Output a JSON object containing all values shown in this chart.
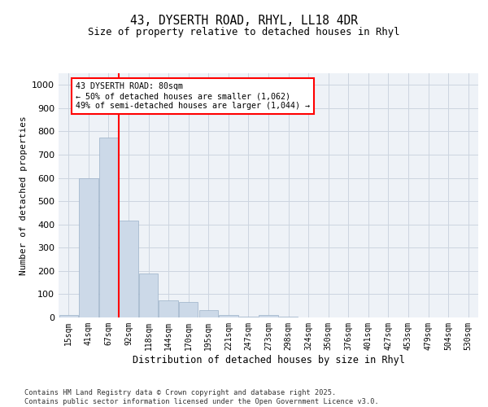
{
  "title1": "43, DYSERTH ROAD, RHYL, LL18 4DR",
  "title2": "Size of property relative to detached houses in Rhyl",
  "xlabel": "Distribution of detached houses by size in Rhyl",
  "ylabel": "Number of detached properties",
  "categories": [
    "15sqm",
    "41sqm",
    "67sqm",
    "92sqm",
    "118sqm",
    "144sqm",
    "170sqm",
    "195sqm",
    "221sqm",
    "247sqm",
    "273sqm",
    "298sqm",
    "324sqm",
    "350sqm",
    "376sqm",
    "401sqm",
    "427sqm",
    "453sqm",
    "479sqm",
    "504sqm",
    "530sqm"
  ],
  "values": [
    10,
    600,
    775,
    415,
    190,
    75,
    65,
    30,
    12,
    5,
    12,
    5,
    0,
    0,
    0,
    0,
    0,
    0,
    0,
    0,
    0
  ],
  "bar_color": "#ccd9e8",
  "bar_edgecolor": "#9ab0c8",
  "grid_color": "#ccd5e0",
  "background_color": "#eef2f7",
  "vline_x": 2.5,
  "vline_color": "red",
  "annotation_text": "43 DYSERTH ROAD: 80sqm\n← 50% of detached houses are smaller (1,062)\n49% of semi-detached houses are larger (1,044) →",
  "annotation_box_color": "red",
  "ylim": [
    0,
    1050
  ],
  "yticks": [
    0,
    100,
    200,
    300,
    400,
    500,
    600,
    700,
    800,
    900,
    1000
  ],
  "footnote": "Contains HM Land Registry data © Crown copyright and database right 2025.\nContains public sector information licensed under the Open Government Licence v3.0."
}
